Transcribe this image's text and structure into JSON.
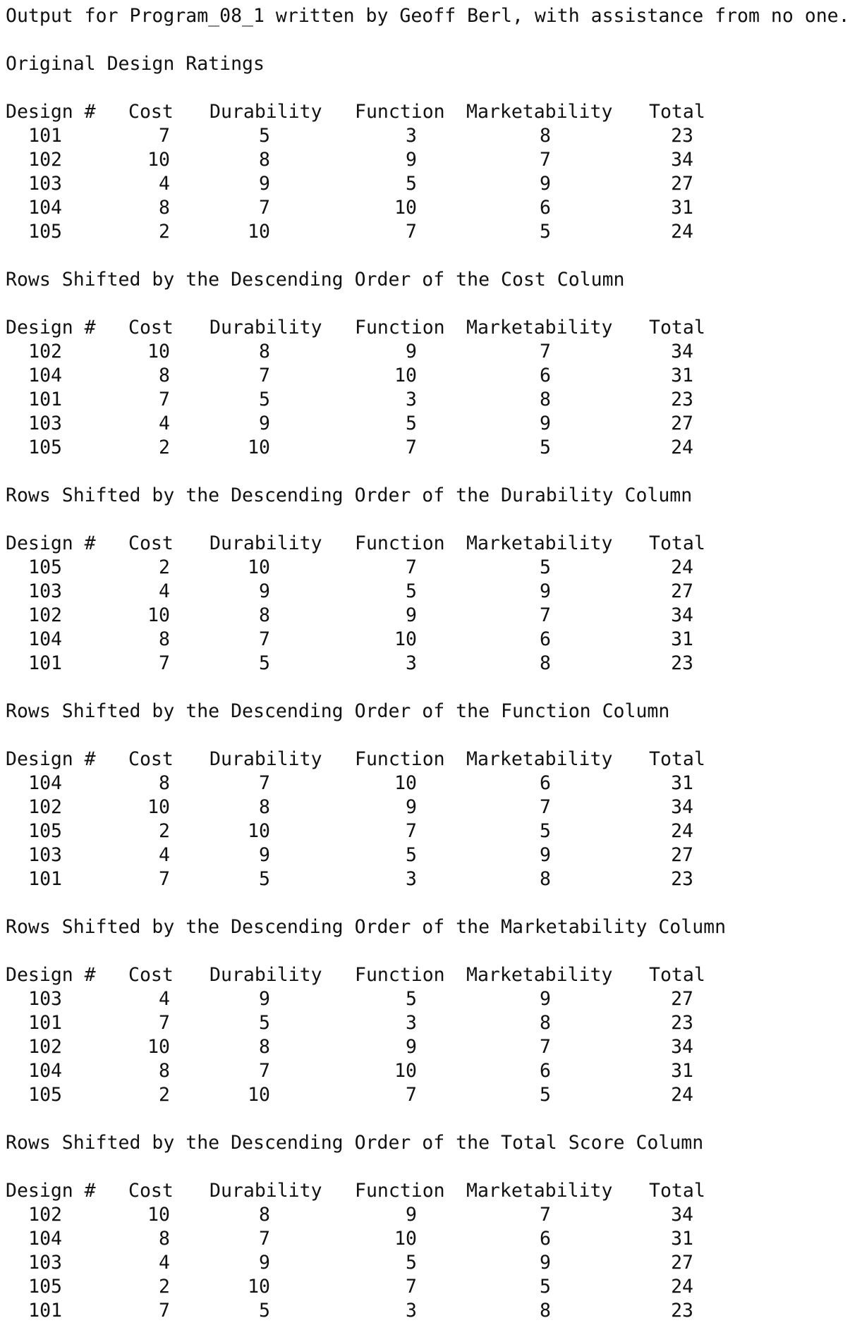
{
  "header_line": "Output for Program_08_1 written by Geoff Berl, with assistance from no one.",
  "columns": [
    "Design #",
    "Cost",
    "Durability",
    "Function",
    "Marketability",
    "Total"
  ],
  "sections": [
    {
      "title": "Original Design Ratings",
      "rows": [
        [
          "101",
          "7",
          "5",
          "3",
          "8",
          "23"
        ],
        [
          "102",
          "10",
          "8",
          "9",
          "7",
          "34"
        ],
        [
          "103",
          "4",
          "9",
          "5",
          "9",
          "27"
        ],
        [
          "104",
          "8",
          "7",
          "10",
          "6",
          "31"
        ],
        [
          "105",
          "2",
          "10",
          "7",
          "5",
          "24"
        ]
      ]
    },
    {
      "title": "Rows Shifted by the Descending Order of the Cost Column",
      "rows": [
        [
          "102",
          "10",
          "8",
          "9",
          "7",
          "34"
        ],
        [
          "104",
          "8",
          "7",
          "10",
          "6",
          "31"
        ],
        [
          "101",
          "7",
          "5",
          "3",
          "8",
          "23"
        ],
        [
          "103",
          "4",
          "9",
          "5",
          "9",
          "27"
        ],
        [
          "105",
          "2",
          "10",
          "7",
          "5",
          "24"
        ]
      ]
    },
    {
      "title": "Rows Shifted by the Descending Order of the Durability Column",
      "rows": [
        [
          "105",
          "2",
          "10",
          "7",
          "5",
          "24"
        ],
        [
          "103",
          "4",
          "9",
          "5",
          "9",
          "27"
        ],
        [
          "102",
          "10",
          "8",
          "9",
          "7",
          "34"
        ],
        [
          "104",
          "8",
          "7",
          "10",
          "6",
          "31"
        ],
        [
          "101",
          "7",
          "5",
          "3",
          "8",
          "23"
        ]
      ]
    },
    {
      "title": "Rows Shifted by the Descending Order of the Function Column",
      "rows": [
        [
          "104",
          "8",
          "7",
          "10",
          "6",
          "31"
        ],
        [
          "102",
          "10",
          "8",
          "9",
          "7",
          "34"
        ],
        [
          "105",
          "2",
          "10",
          "7",
          "5",
          "24"
        ],
        [
          "103",
          "4",
          "9",
          "5",
          "9",
          "27"
        ],
        [
          "101",
          "7",
          "5",
          "3",
          "8",
          "23"
        ]
      ]
    },
    {
      "title": "Rows Shifted by the Descending Order of the Marketability Column",
      "rows": [
        [
          "103",
          "4",
          "9",
          "5",
          "9",
          "27"
        ],
        [
          "101",
          "7",
          "5",
          "3",
          "8",
          "23"
        ],
        [
          "102",
          "10",
          "8",
          "9",
          "7",
          "34"
        ],
        [
          "104",
          "8",
          "7",
          "10",
          "6",
          "31"
        ],
        [
          "105",
          "2",
          "10",
          "7",
          "5",
          "24"
        ]
      ]
    },
    {
      "title": "Rows Shifted by the Descending Order of the Total Score Column",
      "rows": [
        [
          "102",
          "10",
          "8",
          "9",
          "7",
          "34"
        ],
        [
          "104",
          "8",
          "7",
          "10",
          "6",
          "31"
        ],
        [
          "103",
          "4",
          "9",
          "5",
          "9",
          "27"
        ],
        [
          "105",
          "2",
          "10",
          "7",
          "5",
          "24"
        ],
        [
          "101",
          "7",
          "5",
          "3",
          "8",
          "23"
        ]
      ]
    }
  ]
}
